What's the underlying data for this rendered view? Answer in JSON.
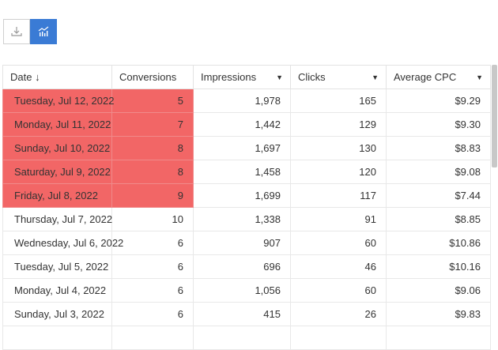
{
  "toolbar": {
    "download": "download-icon",
    "chart": "chart-icon"
  },
  "columns": [
    "Date ↓",
    "Conversions",
    "Impressions",
    "Clicks",
    "Average CPC"
  ],
  "rows": [
    {
      "date": "Tuesday, Jul 12, 2022",
      "conversions": "5",
      "impressions": "1,978",
      "clicks": "165",
      "cpc": "$9.29",
      "highlight": true
    },
    {
      "date": "Monday, Jul 11, 2022",
      "conversions": "7",
      "impressions": "1,442",
      "clicks": "129",
      "cpc": "$9.30",
      "highlight": true
    },
    {
      "date": "Sunday, Jul 10, 2022",
      "conversions": "8",
      "impressions": "1,697",
      "clicks": "130",
      "cpc": "$8.83",
      "highlight": true
    },
    {
      "date": "Saturday, Jul 9, 2022",
      "conversions": "8",
      "impressions": "1,458",
      "clicks": "120",
      "cpc": "$9.08",
      "highlight": true
    },
    {
      "date": "Friday, Jul 8, 2022",
      "conversions": "9",
      "impressions": "1,699",
      "clicks": "117",
      "cpc": "$7.44",
      "highlight": true
    },
    {
      "date": "Thursday, Jul 7, 2022",
      "conversions": "10",
      "impressions": "1,338",
      "clicks": "91",
      "cpc": "$8.85",
      "highlight": false
    },
    {
      "date": "Wednesday, Jul 6, 2022",
      "conversions": "6",
      "impressions": "907",
      "clicks": "60",
      "cpc": "$10.86",
      "highlight": false
    },
    {
      "date": "Tuesday, Jul 5, 2022",
      "conversions": "6",
      "impressions": "696",
      "clicks": "46",
      "cpc": "$10.16",
      "highlight": false
    },
    {
      "date": "Monday, Jul 4, 2022",
      "conversions": "6",
      "impressions": "1,056",
      "clicks": "60",
      "cpc": "$9.06",
      "highlight": false
    },
    {
      "date": "Sunday, Jul 3, 2022",
      "conversions": "6",
      "impressions": "415",
      "clicks": "26",
      "cpc": "$9.83",
      "highlight": false
    },
    {
      "date": "",
      "conversions": "",
      "impressions": "",
      "clicks": "",
      "cpc": "",
      "highlight": false
    }
  ],
  "colors": {
    "highlight": "#f26666",
    "accent": "#3a7bd5"
  }
}
